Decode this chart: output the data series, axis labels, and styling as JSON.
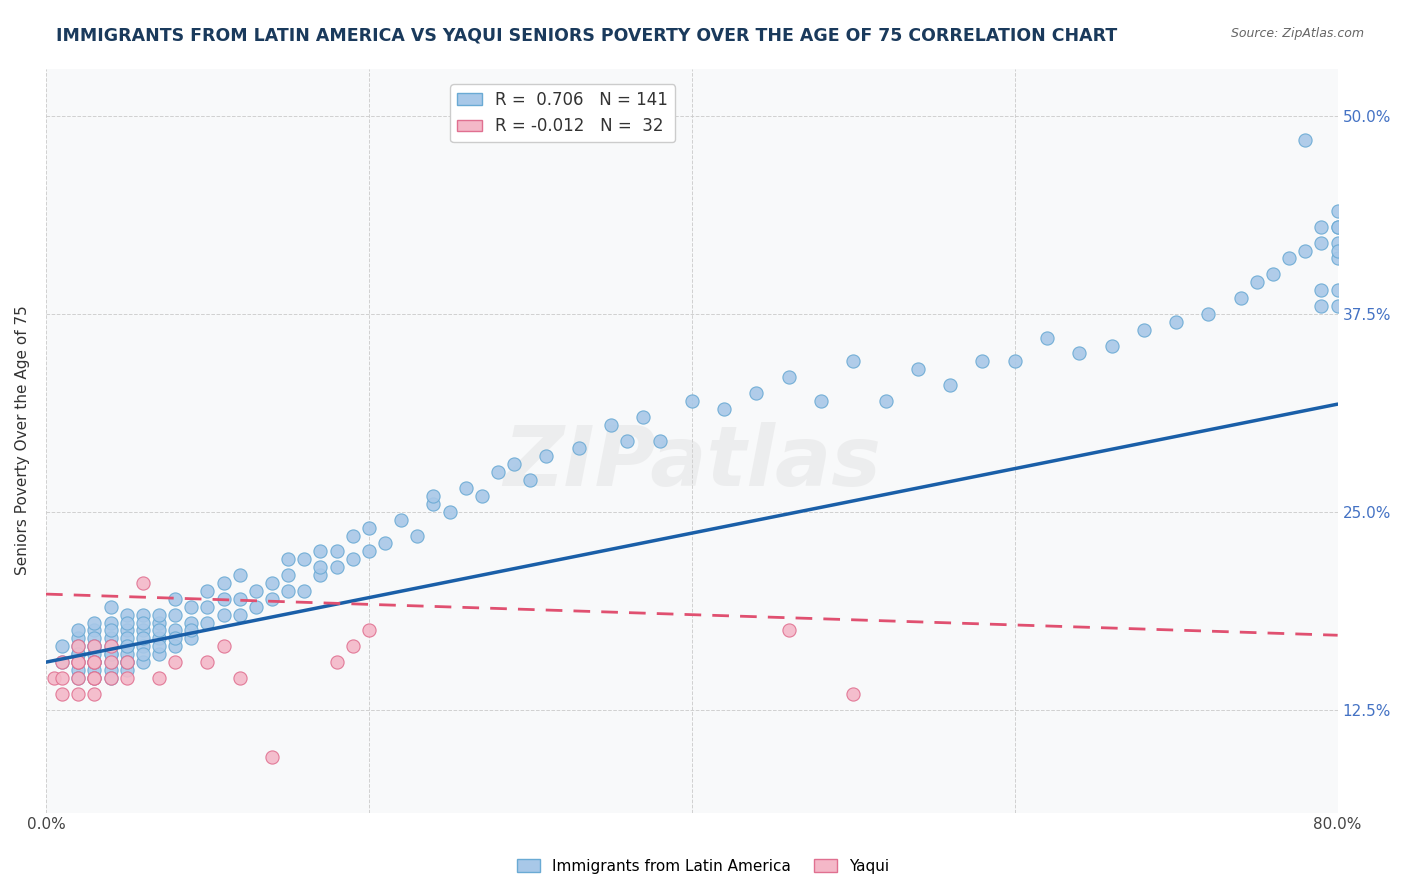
{
  "title": "IMMIGRANTS FROM LATIN AMERICA VS YAQUI SENIORS POVERTY OVER THE AGE OF 75 CORRELATION CHART",
  "source": "Source: ZipAtlas.com",
  "ylabel": "Seniors Poverty Over the Age of 75",
  "watermark": "ZIPatlas",
  "blue_R": 0.706,
  "blue_N": 141,
  "pink_R": -0.012,
  "pink_N": 32,
  "xlim": [
    0.0,
    0.8
  ],
  "ylim": [
    0.06,
    0.53
  ],
  "ytick_positions": [
    0.125,
    0.25,
    0.375,
    0.5
  ],
  "ytick_labels": [
    "12.5%",
    "25.0%",
    "37.5%",
    "50.0%"
  ],
  "blue_scatter_color": "#a8c8e8",
  "blue_scatter_edge": "#6aaad4",
  "pink_scatter_color": "#f4b8c8",
  "pink_scatter_edge": "#e07090",
  "blue_line_color": "#1a5fa8",
  "pink_line_color": "#e05070",
  "legend_label_blue": "Immigrants from Latin America",
  "legend_label_pink": "Yaqui",
  "blue_trend_y_start": 0.155,
  "blue_trend_y_end": 0.318,
  "pink_trend_y_start": 0.198,
  "pink_trend_y_end": 0.172,
  "blue_scatter_x": [
    0.01,
    0.01,
    0.02,
    0.02,
    0.02,
    0.02,
    0.02,
    0.02,
    0.02,
    0.02,
    0.03,
    0.03,
    0.03,
    0.03,
    0.03,
    0.03,
    0.03,
    0.03,
    0.03,
    0.03,
    0.04,
    0.04,
    0.04,
    0.04,
    0.04,
    0.04,
    0.04,
    0.04,
    0.04,
    0.04,
    0.05,
    0.05,
    0.05,
    0.05,
    0.05,
    0.05,
    0.05,
    0.05,
    0.05,
    0.05,
    0.06,
    0.06,
    0.06,
    0.06,
    0.06,
    0.06,
    0.06,
    0.07,
    0.07,
    0.07,
    0.07,
    0.07,
    0.07,
    0.08,
    0.08,
    0.08,
    0.08,
    0.08,
    0.09,
    0.09,
    0.09,
    0.09,
    0.1,
    0.1,
    0.1,
    0.11,
    0.11,
    0.11,
    0.12,
    0.12,
    0.12,
    0.13,
    0.13,
    0.14,
    0.14,
    0.15,
    0.15,
    0.15,
    0.16,
    0.16,
    0.17,
    0.17,
    0.17,
    0.18,
    0.18,
    0.19,
    0.19,
    0.2,
    0.2,
    0.21,
    0.22,
    0.23,
    0.24,
    0.24,
    0.25,
    0.26,
    0.27,
    0.28,
    0.29,
    0.3,
    0.31,
    0.33,
    0.35,
    0.36,
    0.37,
    0.38,
    0.4,
    0.42,
    0.44,
    0.46,
    0.48,
    0.5,
    0.52,
    0.54,
    0.56,
    0.58,
    0.6,
    0.62,
    0.64,
    0.66,
    0.68,
    0.7,
    0.72,
    0.74,
    0.75,
    0.76,
    0.77,
    0.78,
    0.79,
    0.79,
    0.79,
    0.8,
    0.8,
    0.8,
    0.8,
    0.8,
    0.8,
    0.8,
    0.8,
    0.79,
    0.78
  ],
  "blue_scatter_y": [
    0.155,
    0.165,
    0.15,
    0.16,
    0.17,
    0.155,
    0.165,
    0.175,
    0.145,
    0.16,
    0.155,
    0.165,
    0.175,
    0.15,
    0.16,
    0.17,
    0.18,
    0.145,
    0.155,
    0.165,
    0.15,
    0.16,
    0.17,
    0.18,
    0.155,
    0.165,
    0.175,
    0.145,
    0.19,
    0.16,
    0.155,
    0.165,
    0.175,
    0.185,
    0.15,
    0.16,
    0.17,
    0.18,
    0.155,
    0.165,
    0.155,
    0.165,
    0.175,
    0.185,
    0.16,
    0.17,
    0.18,
    0.16,
    0.17,
    0.18,
    0.165,
    0.175,
    0.185,
    0.165,
    0.175,
    0.185,
    0.195,
    0.17,
    0.17,
    0.18,
    0.19,
    0.175,
    0.18,
    0.19,
    0.2,
    0.185,
    0.195,
    0.205,
    0.185,
    0.195,
    0.21,
    0.19,
    0.2,
    0.195,
    0.205,
    0.2,
    0.21,
    0.22,
    0.2,
    0.22,
    0.21,
    0.215,
    0.225,
    0.215,
    0.225,
    0.22,
    0.235,
    0.225,
    0.24,
    0.23,
    0.245,
    0.235,
    0.255,
    0.26,
    0.25,
    0.265,
    0.26,
    0.275,
    0.28,
    0.27,
    0.285,
    0.29,
    0.305,
    0.295,
    0.31,
    0.295,
    0.32,
    0.315,
    0.325,
    0.335,
    0.32,
    0.345,
    0.32,
    0.34,
    0.33,
    0.345,
    0.345,
    0.36,
    0.35,
    0.355,
    0.365,
    0.37,
    0.375,
    0.385,
    0.395,
    0.4,
    0.41,
    0.415,
    0.42,
    0.43,
    0.38,
    0.38,
    0.39,
    0.41,
    0.43,
    0.44,
    0.43,
    0.42,
    0.415,
    0.39,
    0.485
  ],
  "pink_scatter_x": [
    0.005,
    0.01,
    0.01,
    0.01,
    0.02,
    0.02,
    0.02,
    0.02,
    0.02,
    0.03,
    0.03,
    0.03,
    0.03,
    0.03,
    0.03,
    0.04,
    0.04,
    0.04,
    0.05,
    0.05,
    0.06,
    0.07,
    0.08,
    0.1,
    0.11,
    0.12,
    0.14,
    0.18,
    0.19,
    0.2,
    0.46,
    0.5
  ],
  "pink_scatter_y": [
    0.145,
    0.145,
    0.155,
    0.135,
    0.145,
    0.155,
    0.165,
    0.135,
    0.155,
    0.145,
    0.155,
    0.165,
    0.135,
    0.145,
    0.155,
    0.145,
    0.155,
    0.165,
    0.145,
    0.155,
    0.205,
    0.145,
    0.155,
    0.155,
    0.165,
    0.145,
    0.095,
    0.155,
    0.165,
    0.175,
    0.175,
    0.135
  ],
  "title_color": "#1a3a5c",
  "source_color": "#666666",
  "axis_label_color": "#333333",
  "tick_label_color_blue": "#4472c4",
  "grid_color": "#cccccc",
  "background_color": "#ffffff",
  "plot_bg_color": "#f8f9fa"
}
